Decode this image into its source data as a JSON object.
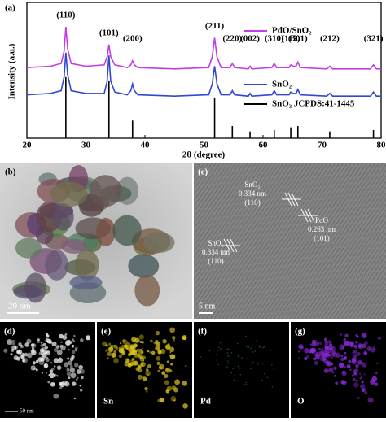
{
  "chart_data": {
    "type": "line",
    "panel_label": "(a)",
    "xlabel": "2θ (degree)",
    "ylabel": "Intensity (a.u.)",
    "xlim": [
      20,
      80
    ],
    "xticks": [
      20,
      30,
      40,
      50,
      60,
      70,
      80
    ],
    "ylim": [
      0,
      100
    ],
    "x": [
      20,
      24,
      25.8,
      26.3,
      26.6,
      26.9,
      27.5,
      30,
      33.1,
      33.6,
      33.9,
      34.2,
      34.9,
      37,
      37.6,
      37.9,
      38.2,
      38.8,
      45,
      50.8,
      51.4,
      51.8,
      52.2,
      52.9,
      54.4,
      54.8,
      55.2,
      57.5,
      57.8,
      58.1,
      61.5,
      61.9,
      62.3,
      64.4,
      64.7,
      65.1,
      65.6,
      65.9,
      66.3,
      70.8,
      71.3,
      71.8,
      78.2,
      78.7,
      79.2,
      80
    ],
    "series": [
      {
        "name": "PdO/SnO₂",
        "color": "#c23ee0",
        "values": [
          52,
          53,
          55,
          64,
          82,
          66,
          55,
          53,
          54,
          60,
          69,
          60,
          54,
          52,
          54,
          57,
          54,
          52,
          51,
          52,
          60,
          74,
          60,
          52,
          52,
          55,
          52,
          51,
          53,
          51,
          52,
          55,
          52,
          52,
          54,
          53,
          53,
          56,
          52,
          51,
          53,
          51,
          51,
          54,
          51,
          51
        ]
      },
      {
        "name": "SnO₂",
        "color": "#3048d0",
        "values": [
          32,
          33,
          35,
          45,
          63,
          47,
          35,
          33,
          33,
          42,
          61,
          42,
          34,
          32,
          35,
          40,
          35,
          32,
          31,
          32,
          40,
          53,
          40,
          32,
          32,
          35,
          32,
          31,
          33,
          31,
          32,
          35,
          32,
          32,
          34,
          33,
          33,
          36,
          32,
          31,
          33,
          31,
          31,
          34,
          31,
          31
        ]
      }
    ],
    "reference": {
      "name": "SnO₂ JCPDS:41-1445",
      "color": "#000000",
      "x": [
        26.6,
        33.9,
        37.9,
        51.8,
        54.8,
        57.8,
        61.9,
        64.7,
        65.9,
        71.3,
        78.7
      ],
      "values": [
        45,
        42,
        13,
        30,
        9,
        5,
        6,
        8,
        9,
        5,
        6
      ],
      "labels": [
        "(110)",
        "(101)",
        "(200)",
        "(211)",
        "(220)",
        "(002)",
        "(310)",
        "(112)",
        "(301)",
        "(212)",
        "(321)"
      ]
    }
  },
  "panels": [
    {
      "label": "(b)",
      "scale_bar": "20 nm"
    },
    {
      "label": "(c)",
      "scale_bar": "5 nm",
      "annotations": [
        {
          "lines": [
            "SnO₂",
            "0.334 nm",
            "(110)"
          ]
        },
        {
          "lines": [
            "PdO",
            "0.263 nm",
            "(101)"
          ]
        },
        {
          "lines": [
            "SnO₂",
            "0.334 nm",
            "(110)"
          ]
        }
      ]
    },
    {
      "label": "(d)",
      "scale_bar": "50 nm"
    },
    {
      "label": "(e)",
      "element": "Sn"
    },
    {
      "label": "(f)",
      "element": "Pd"
    },
    {
      "label": "(g)",
      "element": "O"
    }
  ]
}
